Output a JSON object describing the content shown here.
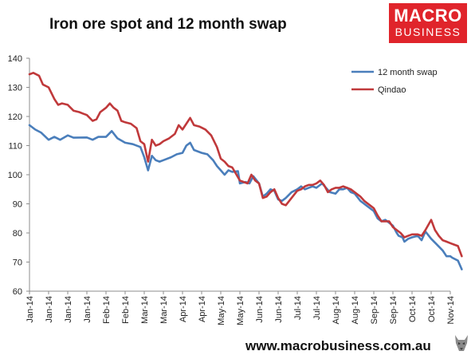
{
  "header": {
    "title": "Iron ore spot and 12 month swap"
  },
  "logo": {
    "line1": "MACRO",
    "line2": "BUSINESS",
    "color": "#e0242b"
  },
  "footer": {
    "url": "www.macrobusiness.com.au"
  },
  "chart_data": {
    "type": "line",
    "title": "Iron ore spot and 12 month swap",
    "xlabel": "",
    "ylabel": "",
    "ylim": [
      60,
      140
    ],
    "yticks": [
      60,
      70,
      80,
      90,
      100,
      110,
      120,
      130,
      140
    ],
    "xticks": [
      "Jan-14",
      "Jan-14",
      "Jan-14",
      "Jan-14",
      "Feb-14",
      "Feb-14",
      "Mar-14",
      "Mar-14",
      "Apr-14",
      "Apr-14",
      "May-14",
      "May-14",
      "Jun-14",
      "Jun-14",
      "Jul-14",
      "Jul-14",
      "Aug-14",
      "Aug-14",
      "Sep-14",
      "Sep-14",
      "Oct-14",
      "Oct-14",
      "Nov-14"
    ],
    "grid": false,
    "legend": "top-right",
    "x_index_range": [
      0,
      22
    ],
    "series": [
      {
        "name": "12 month swap",
        "color": "#4a7ebb",
        "points": [
          [
            0.0,
            117
          ],
          [
            0.3,
            115.5
          ],
          [
            0.6,
            114.5
          ],
          [
            1.0,
            112
          ],
          [
            1.3,
            113
          ],
          [
            1.6,
            112
          ],
          [
            2.0,
            113.5
          ],
          [
            2.3,
            112.7
          ],
          [
            3.0,
            112.8
          ],
          [
            3.3,
            112
          ],
          [
            3.6,
            113
          ],
          [
            4.0,
            113
          ],
          [
            4.3,
            115
          ],
          [
            4.6,
            112.5
          ],
          [
            5.0,
            111
          ],
          [
            5.4,
            110.5
          ],
          [
            5.8,
            109.5
          ],
          [
            6.0,
            106
          ],
          [
            6.2,
            101.5
          ],
          [
            6.4,
            106.5
          ],
          [
            6.6,
            105
          ],
          [
            6.8,
            104.5
          ],
          [
            7.0,
            105
          ],
          [
            7.4,
            106
          ],
          [
            7.7,
            107
          ],
          [
            8.0,
            107.5
          ],
          [
            8.2,
            110
          ],
          [
            8.4,
            111
          ],
          [
            8.6,
            108.5
          ],
          [
            9.0,
            107.5
          ],
          [
            9.3,
            107
          ],
          [
            9.6,
            105
          ],
          [
            9.8,
            103
          ],
          [
            10.0,
            101.5
          ],
          [
            10.2,
            100
          ],
          [
            10.4,
            101.5
          ],
          [
            10.6,
            101
          ],
          [
            10.9,
            101.2
          ],
          [
            11.0,
            97
          ],
          [
            11.3,
            97.5
          ],
          [
            11.5,
            97
          ],
          [
            11.7,
            99.5
          ],
          [
            12.0,
            97
          ],
          [
            12.2,
            92.5
          ],
          [
            12.4,
            93.5
          ],
          [
            12.6,
            95
          ],
          [
            12.8,
            94.5
          ],
          [
            13.0,
            91.5
          ],
          [
            13.2,
            91
          ],
          [
            13.4,
            92
          ],
          [
            13.7,
            94
          ],
          [
            14.0,
            95
          ],
          [
            14.2,
            96
          ],
          [
            14.4,
            95
          ],
          [
            14.6,
            95.5
          ],
          [
            14.8,
            96
          ],
          [
            15.0,
            95.5
          ],
          [
            15.3,
            97
          ],
          [
            15.5,
            95.5
          ],
          [
            15.7,
            94
          ],
          [
            16.0,
            93.5
          ],
          [
            16.2,
            95
          ],
          [
            16.4,
            95
          ],
          [
            16.6,
            95.5
          ],
          [
            16.8,
            94
          ],
          [
            17.0,
            93.5
          ],
          [
            17.3,
            91
          ],
          [
            17.6,
            89.5
          ],
          [
            18.0,
            87.5
          ],
          [
            18.2,
            85
          ],
          [
            18.4,
            84
          ],
          [
            18.6,
            84.5
          ],
          [
            18.8,
            83.5
          ],
          [
            19.0,
            82.5
          ],
          [
            19.2,
            80
          ],
          [
            19.3,
            79
          ],
          [
            19.5,
            78.5
          ],
          [
            19.6,
            77
          ],
          [
            19.8,
            78
          ],
          [
            20.0,
            78.5
          ],
          [
            20.3,
            79
          ],
          [
            20.5,
            77.5
          ],
          [
            20.7,
            80.5
          ],
          [
            21.0,
            78
          ],
          [
            21.3,
            76
          ],
          [
            21.6,
            74
          ],
          [
            21.8,
            72
          ],
          [
            22.0,
            72
          ],
          [
            22.1,
            71.5
          ],
          [
            22.4,
            70.5
          ],
          [
            22.6,
            67.5
          ]
        ]
      },
      {
        "name": "Qindao",
        "color": "#c0393b",
        "points": [
          [
            0.0,
            134.5
          ],
          [
            0.2,
            135
          ],
          [
            0.5,
            134
          ],
          [
            0.7,
            131
          ],
          [
            1.0,
            130
          ],
          [
            1.3,
            126
          ],
          [
            1.5,
            124
          ],
          [
            1.7,
            124.5
          ],
          [
            2.0,
            124
          ],
          [
            2.3,
            122
          ],
          [
            2.6,
            121.5
          ],
          [
            2.8,
            121
          ],
          [
            3.0,
            120.5
          ],
          [
            3.3,
            118.5
          ],
          [
            3.5,
            119
          ],
          [
            3.7,
            121.5
          ],
          [
            4.0,
            123
          ],
          [
            4.2,
            124.5
          ],
          [
            4.4,
            123
          ],
          [
            4.6,
            122
          ],
          [
            4.8,
            118.5
          ],
          [
            5.0,
            118
          ],
          [
            5.3,
            117.5
          ],
          [
            5.6,
            116
          ],
          [
            5.8,
            111.5
          ],
          [
            6.0,
            110.5
          ],
          [
            6.2,
            104.5
          ],
          [
            6.4,
            112
          ],
          [
            6.6,
            110
          ],
          [
            6.8,
            110.5
          ],
          [
            7.0,
            111.5
          ],
          [
            7.3,
            112.5
          ],
          [
            7.6,
            114
          ],
          [
            7.8,
            117
          ],
          [
            8.0,
            115.5
          ],
          [
            8.2,
            117.5
          ],
          [
            8.4,
            119.5
          ],
          [
            8.6,
            117
          ],
          [
            8.9,
            116.5
          ],
          [
            9.2,
            115.5
          ],
          [
            9.5,
            113.5
          ],
          [
            9.8,
            109.5
          ],
          [
            10.0,
            105.5
          ],
          [
            10.2,
            104.5
          ],
          [
            10.4,
            103
          ],
          [
            10.6,
            102.5
          ],
          [
            11.0,
            98
          ],
          [
            11.2,
            97.5
          ],
          [
            11.4,
            97
          ],
          [
            11.6,
            100
          ],
          [
            11.8,
            98
          ],
          [
            12.0,
            97
          ],
          [
            12.2,
            92
          ],
          [
            12.4,
            92.5
          ],
          [
            12.6,
            94
          ],
          [
            12.8,
            95
          ],
          [
            13.0,
            92
          ],
          [
            13.2,
            90
          ],
          [
            13.4,
            89.5
          ],
          [
            13.7,
            92
          ],
          [
            14.0,
            94.5
          ],
          [
            14.2,
            95
          ],
          [
            14.4,
            96
          ],
          [
            14.6,
            96.5
          ],
          [
            14.8,
            96.5
          ],
          [
            15.0,
            97
          ],
          [
            15.2,
            98
          ],
          [
            15.4,
            96.5
          ],
          [
            15.6,
            94
          ],
          [
            15.8,
            95
          ],
          [
            16.0,
            95.5
          ],
          [
            16.2,
            95.5
          ],
          [
            16.4,
            96
          ],
          [
            16.6,
            95.5
          ],
          [
            16.8,
            95
          ],
          [
            17.0,
            94
          ],
          [
            17.3,
            92.5
          ],
          [
            17.5,
            91
          ],
          [
            17.8,
            89.5
          ],
          [
            18.0,
            88.5
          ],
          [
            18.2,
            86
          ],
          [
            18.4,
            84
          ],
          [
            18.6,
            84
          ],
          [
            18.8,
            84
          ],
          [
            19.0,
            82
          ],
          [
            19.2,
            81
          ],
          [
            19.4,
            80
          ],
          [
            19.6,
            78.5
          ],
          [
            19.8,
            79
          ],
          [
            20.0,
            79.5
          ],
          [
            20.3,
            79.5
          ],
          [
            20.5,
            79
          ],
          [
            20.7,
            81
          ],
          [
            21.0,
            84.5
          ],
          [
            21.2,
            81
          ],
          [
            21.4,
            79
          ],
          [
            21.6,
            77.5
          ],
          [
            21.8,
            77
          ],
          [
            22.0,
            76.5
          ],
          [
            22.2,
            76
          ],
          [
            22.4,
            75.5
          ],
          [
            22.6,
            72
          ]
        ]
      }
    ]
  }
}
